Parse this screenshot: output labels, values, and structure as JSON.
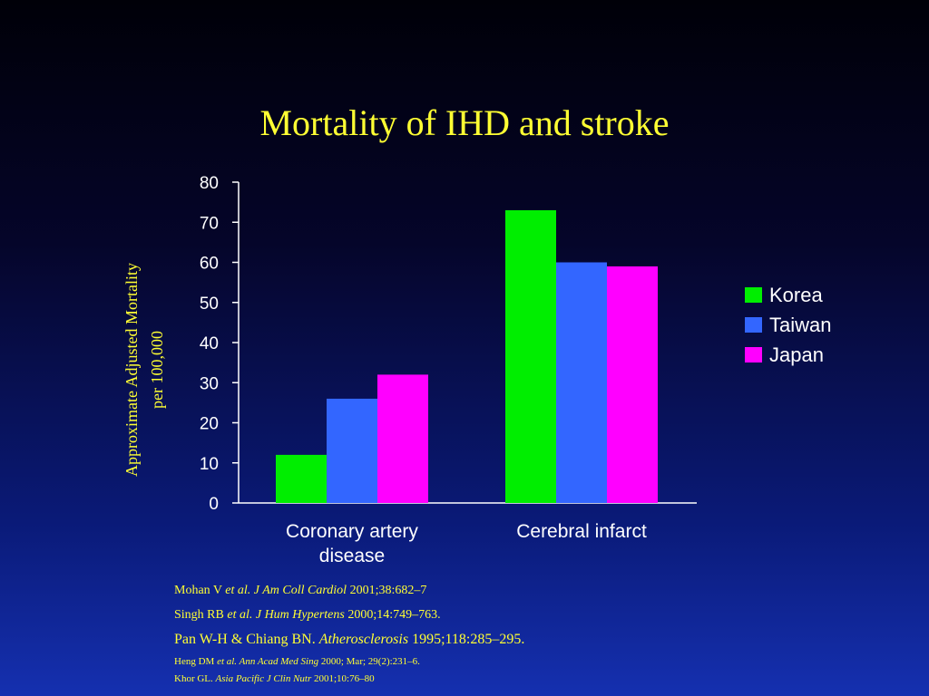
{
  "title": "Mortality of IHD and stroke",
  "colors": {
    "title": "#ffff33",
    "korea": "#00ee00",
    "taiwan": "#3366ff",
    "japan": "#ff00ff",
    "axis": "#ffffff",
    "references": "#ffff33"
  },
  "chart_data": {
    "type": "bar",
    "categories": [
      [
        "Coronary artery",
        "disease"
      ],
      [
        "Cerebral infarct"
      ]
    ],
    "series": [
      {
        "name": "Korea",
        "values": [
          12,
          73
        ],
        "color": "#00ee00"
      },
      {
        "name": "Taiwan",
        "values": [
          26,
          60
        ],
        "color": "#3366ff"
      },
      {
        "name": "Japan",
        "values": [
          32,
          59
        ],
        "color": "#ff00ff"
      }
    ],
    "ylabel": [
      "Approximate Adjusted Mortality",
      "per 100,000"
    ],
    "ylim": [
      0,
      80
    ],
    "yticks": [
      0,
      10,
      20,
      30,
      40,
      50,
      60,
      70,
      80
    ],
    "grid": false,
    "legend_position": "right"
  },
  "references": [
    [
      {
        "t": "Mohan V "
      },
      {
        "t": "et al. J Am Coll Cardiol",
        "i": true
      },
      {
        "t": " 2001;38:682–7"
      }
    ],
    [
      {
        "t": "Singh RB "
      },
      {
        "t": "et al. J Hum Hypertens",
        "i": true
      },
      {
        "t": " 2000;14:749–763."
      }
    ],
    [
      {
        "t": "Pan W-H & Chiang BN. "
      },
      {
        "t": "Atherosclerosis",
        "i": true
      },
      {
        "t": " 1995;118:285–295."
      }
    ],
    [
      {
        "t": "Heng DM "
      },
      {
        "t": "et al. Ann Acad Med Sing",
        "i": true
      },
      {
        "t": " 2000; Mar; 29(2):231–6."
      }
    ],
    [
      {
        "t": "Khor GL. "
      },
      {
        "t": "Asia Pacific J Clin Nutr",
        "i": true
      },
      {
        "t": " 2001;10:76–80"
      }
    ]
  ]
}
